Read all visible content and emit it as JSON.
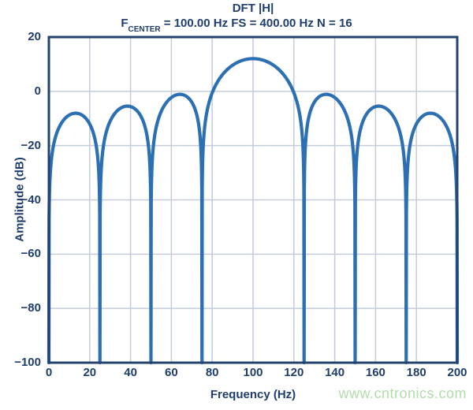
{
  "watermark": {
    "text": "www.cntronics.com",
    "color": "#b2dcab"
  },
  "chart_data": {
    "type": "line",
    "title": "DFT |H|",
    "subtitle": {
      "prefix": "F",
      "subscript": "CENTER",
      "rest": " = 100.00 Hz FS = 400.00 Hz N = 16"
    },
    "xlabel": "Frequency (Hz)",
    "ylabel": "Amplitude (dB)",
    "xlim": [
      0,
      200
    ],
    "ylim": [
      -100,
      20
    ],
    "x_ticks": [
      0,
      20,
      40,
      60,
      80,
      100,
      120,
      140,
      160,
      180,
      200
    ],
    "y_ticks": [
      20,
      0,
      -20,
      -40,
      -60,
      -80,
      -100
    ],
    "grid": true,
    "legend": "none",
    "colors": {
      "line": "#2d6fb3",
      "axis_border": "#24426e",
      "grid": "#c4cbd9",
      "text": "#1f3e6e"
    },
    "dirichlet_params": {
      "f_center_hz": 100,
      "fs_hz": 400,
      "n": 16,
      "peak_db": 12.04,
      "clip_db": -100
    },
    "nulls_hz": [
      0,
      25,
      50,
      75,
      125,
      150,
      175,
      200
    ],
    "lobe_peaks": [
      {
        "f_hz": 12.5,
        "db": -8.1
      },
      {
        "f_hz": 37.5,
        "db": -5.5
      },
      {
        "f_hz": 62.5,
        "db": -1.3
      },
      {
        "f_hz": 100.0,
        "db": 12.0
      },
      {
        "f_hz": 137.5,
        "db": -1.3
      },
      {
        "f_hz": 162.5,
        "db": -5.5
      },
      {
        "f_hz": 187.5,
        "db": -8.1
      }
    ]
  }
}
